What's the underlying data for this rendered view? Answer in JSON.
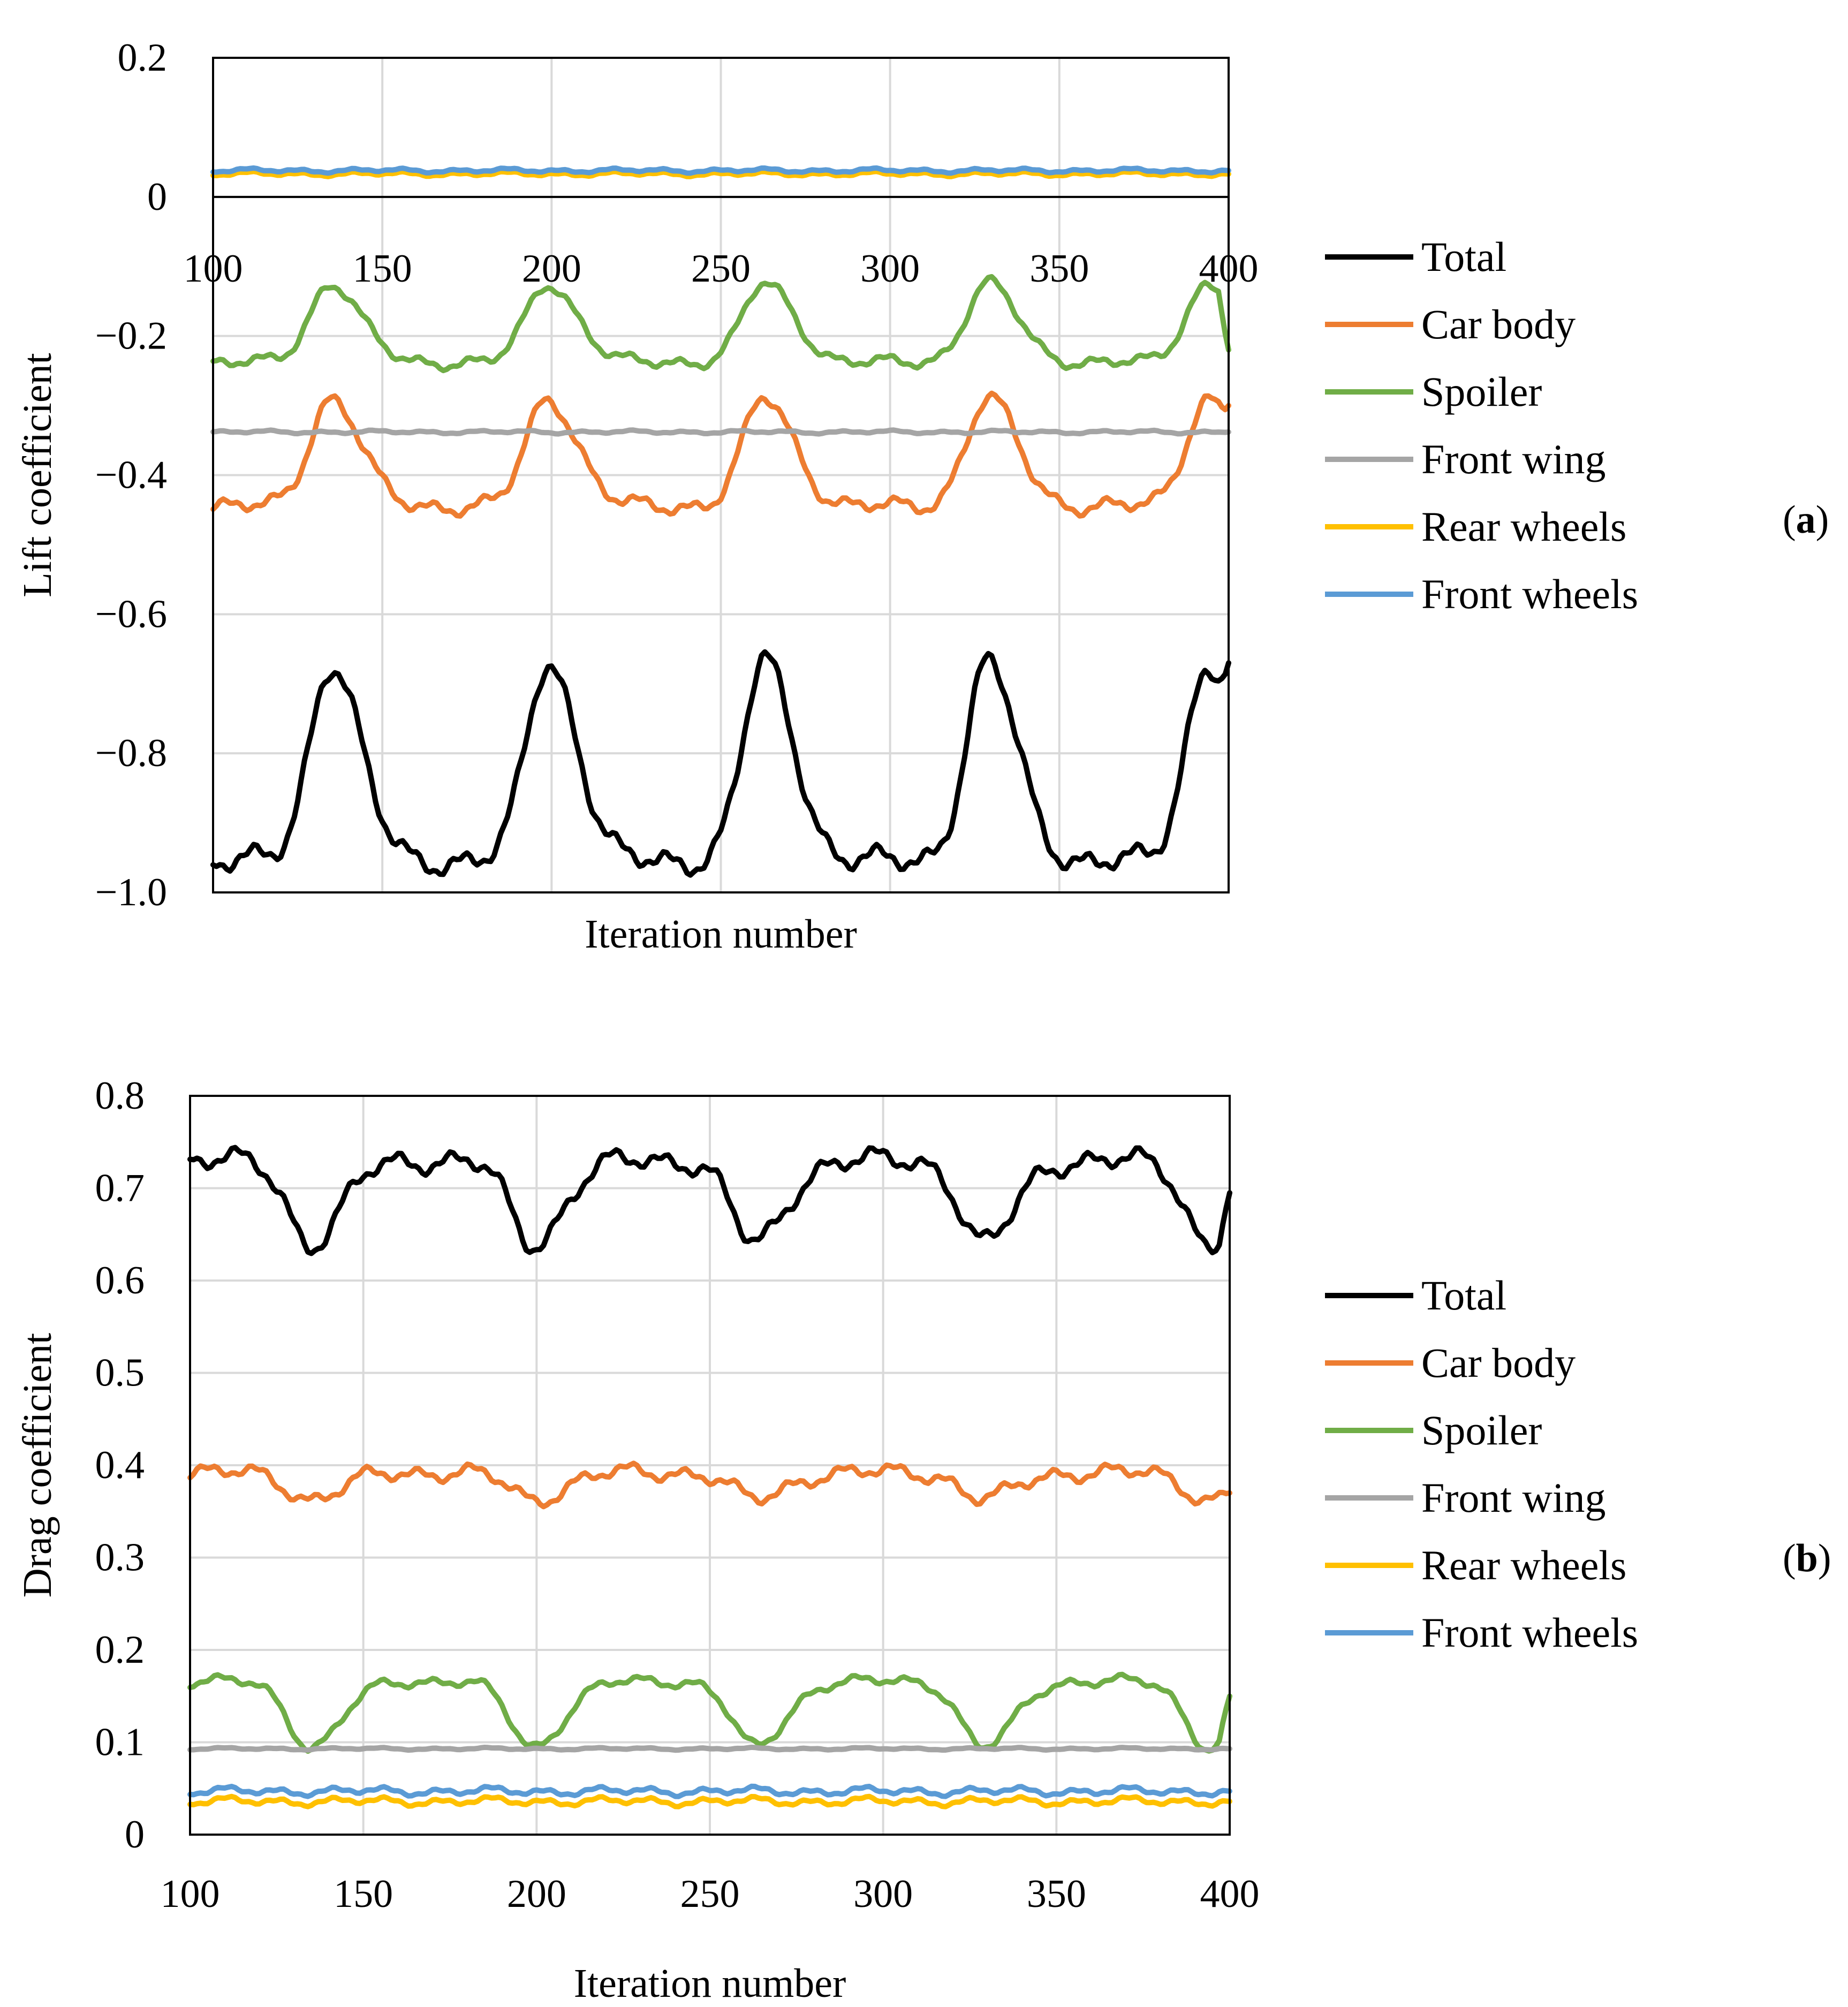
{
  "colors": {
    "total": "#000000",
    "car_body": "#ED7D31",
    "spoiler": "#70AD47",
    "front_wing": "#A5A5A5",
    "rear_wheels": "#FFC000",
    "front_wheels": "#5B9BD5"
  },
  "chart_data": [
    {
      "type": "line",
      "panel_label": "(a)",
      "xlabel": "Iteration number",
      "ylabel": "Lift coefficient",
      "xlim": [
        100,
        400
      ],
      "ylim": [
        -1.0,
        0.2
      ],
      "x_ticks": [
        100,
        150,
        200,
        250,
        300,
        350,
        400
      ],
      "x_tick_labels": [
        "100",
        "150",
        "200",
        "250",
        "300",
        "350",
        "400"
      ],
      "y_ticks": [
        0.2,
        0,
        -0.2,
        -0.4,
        -0.6,
        -0.8,
        -1.0
      ],
      "y_tick_labels": [
        "0.2",
        "0",
        "−0.2",
        "−0.4",
        "−0.6",
        "−0.8",
        "−1.0"
      ],
      "peak_iterations": [
        135,
        199,
        263,
        329,
        394
      ],
      "legend": [
        "Total",
        "Car body",
        "Spoiler",
        "Front wing",
        "Rear wheels",
        "Front wheels"
      ],
      "series": [
        {
          "name": "Total",
          "color_key": "total",
          "baseline": -0.955,
          "peak": -0.67,
          "wiggle": 0.012,
          "extra": -0.67
        },
        {
          "name": "Car body",
          "color_key": "car_body",
          "baseline": -0.445,
          "peak": -0.29,
          "wiggle": 0.008,
          "extra": -0.3
        },
        {
          "name": "Spoiler",
          "color_key": "spoiler",
          "baseline": -0.238,
          "peak": -0.125,
          "wiggle": 0.006,
          "extra": -0.22
        },
        {
          "name": "Front wing",
          "color_key": "front_wing",
          "baseline": -0.338,
          "peak": -0.338,
          "wiggle": 0.0015,
          "extra": -0.338
        },
        {
          "name": "Rear wheels",
          "color_key": "rear_wheels",
          "baseline": 0.033,
          "peak": 0.033,
          "wiggle": 0.002,
          "extra": 0.033
        },
        {
          "name": "Front wheels",
          "color_key": "front_wheels",
          "baseline": 0.038,
          "peak": 0.038,
          "wiggle": 0.002,
          "extra": 0.038
        }
      ]
    },
    {
      "type": "line",
      "panel_label": "(b)",
      "xlabel": "Iteration number",
      "ylabel": "Drag coefficient",
      "xlim": [
        100,
        400
      ],
      "ylim": [
        0,
        0.8
      ],
      "x_ticks": [
        100,
        150,
        200,
        250,
        300,
        350,
        400
      ],
      "x_tick_labels": [
        "100",
        "150",
        "200",
        "250",
        "300",
        "350",
        "400"
      ],
      "y_ticks": [
        0.8,
        0.7,
        0.6,
        0.5,
        0.4,
        0.3,
        0.2,
        0.1,
        0
      ],
      "y_tick_labels": [
        "0.8",
        "0.7",
        "0.6",
        "0.5",
        "0.4",
        "0.3",
        "0.2",
        "0.1",
        "0"
      ],
      "peak_iterations": [
        135,
        199,
        263,
        329,
        394
      ],
      "legend": [
        "Total",
        "Car body",
        "Spoiler",
        "Front wing",
        "Rear wheels",
        "Front wheels"
      ],
      "series": [
        {
          "name": "Total",
          "color_key": "total",
          "baseline": 0.73,
          "peak": 0.64,
          "wiggle": 0.008,
          "extra": 0.695
        },
        {
          "name": "Car body",
          "color_key": "car_body",
          "baseline": 0.392,
          "peak": 0.363,
          "wiggle": 0.006,
          "extra": 0.37
        },
        {
          "name": "Spoiler",
          "color_key": "spoiler",
          "baseline": 0.166,
          "peak": 0.095,
          "wiggle": 0.004,
          "extra": 0.15
        },
        {
          "name": "Front wing",
          "color_key": "front_wing",
          "baseline": 0.093,
          "peak": 0.093,
          "wiggle": 0.0008,
          "extra": 0.093
        },
        {
          "name": "Rear wheels",
          "color_key": "rear_wheels",
          "baseline": 0.036,
          "peak": 0.036,
          "wiggle": 0.003,
          "extra": 0.036
        },
        {
          "name": "Front wheels",
          "color_key": "front_wheels",
          "baseline": 0.047,
          "peak": 0.047,
          "wiggle": 0.003,
          "extra": 0.047
        }
      ]
    }
  ]
}
